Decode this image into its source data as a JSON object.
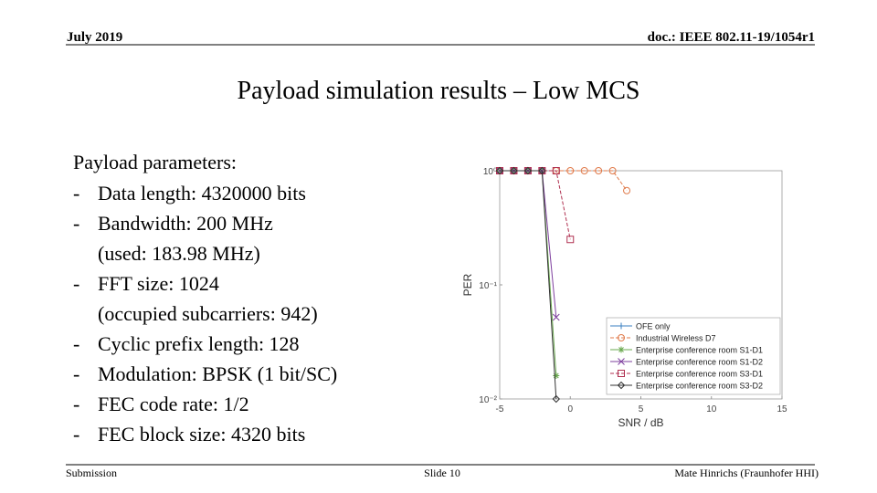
{
  "header": {
    "date": "July 2019",
    "doc": "doc.: IEEE 802.11-19/1054r1"
  },
  "title": "Payload simulation results – Low MCS",
  "body": {
    "heading": "Payload parameters:",
    "bullet": "-",
    "items": [
      {
        "text": "Data length: 4320000 bits"
      },
      {
        "text": "Bandwidth: 200 MHz",
        "note": "(used: 183.98 MHz)"
      },
      {
        "text": "FFT size: 1024",
        "note": "(occupied subcarriers: 942)"
      },
      {
        "text": "Cyclic prefix length: 128"
      },
      {
        "text": "Modulation: BPSK (1 bit/SC)"
      },
      {
        "text": "FEC code rate: 1/2"
      },
      {
        "text": "FEC block size: 4320 bits"
      }
    ]
  },
  "footer": {
    "left": "Submission",
    "center": "Slide 10",
    "right": "Mate Hinrichs (Fraunhofer HHI)"
  },
  "chart_data": {
    "type": "line",
    "xlabel": "SNR / dB",
    "ylabel": "PER",
    "x": [
      -5,
      -4,
      -3,
      -2,
      -1,
      0,
      1,
      2,
      3,
      4
    ],
    "xlim": [
      -5,
      15
    ],
    "xticks": [
      -5,
      0,
      5,
      10,
      15
    ],
    "ylim": [
      0.01,
      1
    ],
    "yscale": "log",
    "yticks": [
      {
        "value": 1,
        "label": "10⁰"
      },
      {
        "value": 0.1,
        "label": "10⁻¹"
      },
      {
        "value": 0.01,
        "label": "10⁻²"
      }
    ],
    "grid": false,
    "legend": "lower right",
    "series": [
      {
        "name": "OFE only",
        "color": "#3a7fc0",
        "marker": "+",
        "line_style": "-",
        "values": [
          1,
          1,
          1,
          1,
          null,
          null,
          null,
          null,
          null,
          null
        ]
      },
      {
        "name": "Industrial Wireless D7",
        "color": "#e07a4a",
        "marker": "o",
        "line_style": "--",
        "values": [
          1,
          1,
          1,
          1,
          1,
          1,
          1,
          1,
          1,
          0.67
        ]
      },
      {
        "name": "Enterprise conference room S1-D1",
        "color": "#6aa84f",
        "marker": "*",
        "line_style": "-",
        "values": [
          1,
          1,
          1,
          1,
          0.016,
          null,
          null,
          null,
          null,
          null
        ]
      },
      {
        "name": "Enterprise conference room S1-D2",
        "color": "#7e3f9e",
        "marker": "x",
        "line_style": "-",
        "values": [
          1,
          1,
          1,
          1,
          0.052,
          null,
          null,
          null,
          null,
          null
        ]
      },
      {
        "name": "Enterprise conference room S3-D1",
        "color": "#b03050",
        "marker": "s",
        "line_style": "--",
        "values": [
          1,
          1,
          1,
          1,
          1,
          0.25,
          null,
          null,
          null,
          null
        ]
      },
      {
        "name": "Enterprise conference room S3-D2",
        "color": "#333333",
        "marker": "d",
        "line_style": "-",
        "values": [
          1,
          1,
          1,
          1,
          0.01,
          null,
          null,
          null,
          null,
          null
        ]
      }
    ]
  }
}
